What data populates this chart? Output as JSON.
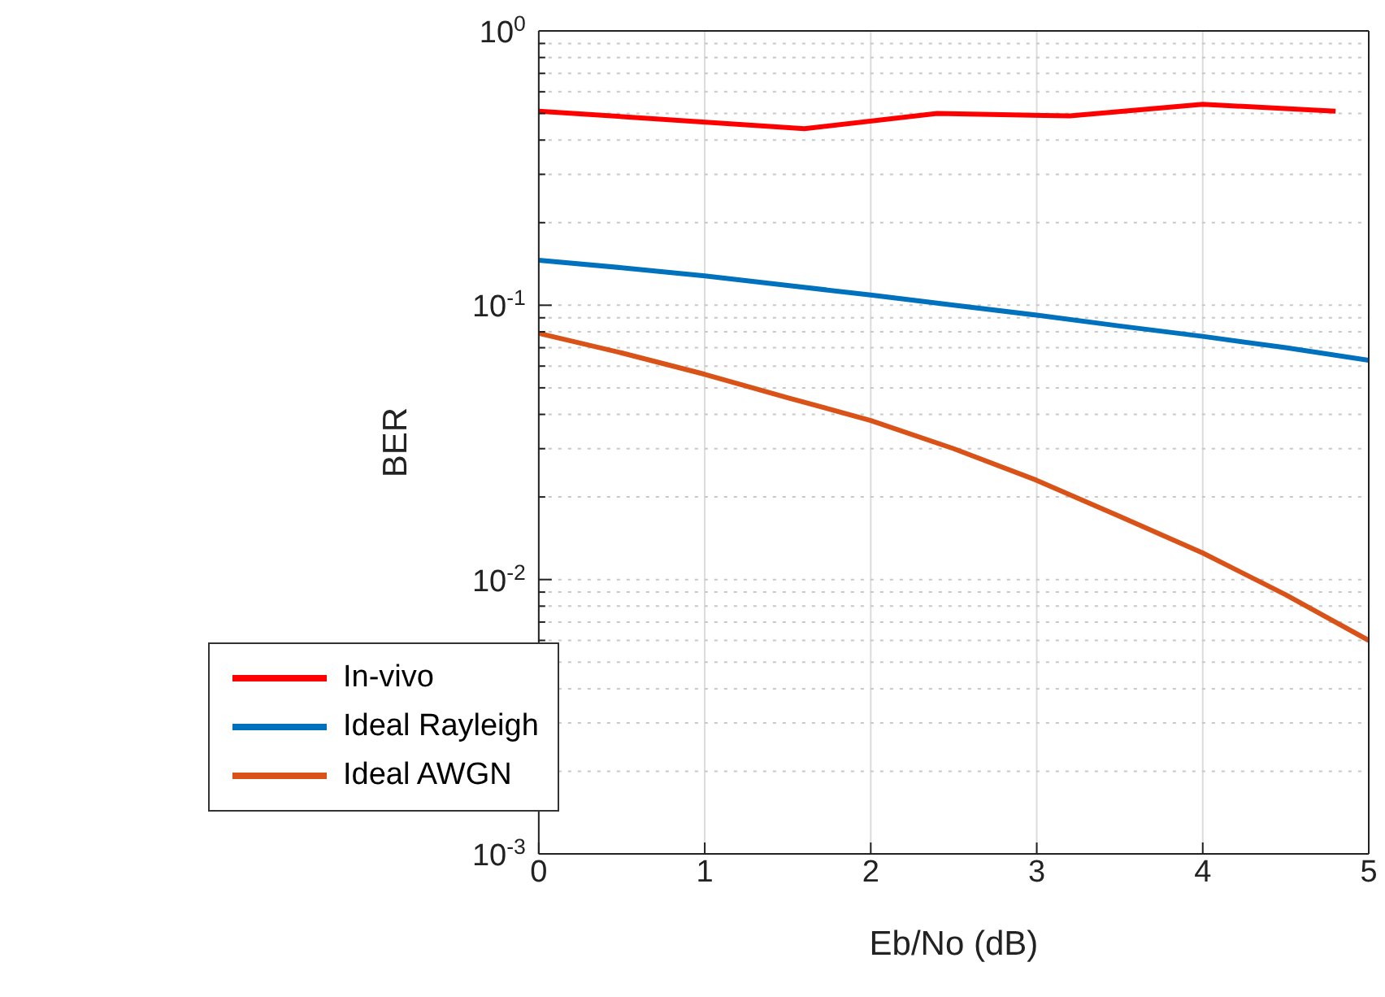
{
  "chart_data": {
    "type": "line",
    "xlabel": "Eb/No (dB)",
    "ylabel": "BER",
    "log": "y",
    "grid": true,
    "legend": "bottom left",
    "line_style": "solid",
    "marker": "none",
    "xlim": [
      0,
      5
    ],
    "xticks": [
      0,
      1,
      2,
      3,
      4,
      5
    ],
    "ylim": [
      0.001,
      1
    ],
    "yticks": [
      {
        "value": 0.001,
        "label": "10$^{-3}$"
      },
      {
        "value": 0.002,
        "label": null
      },
      {
        "value": 0.003,
        "label": null
      },
      {
        "value": 0.004,
        "label": null
      },
      {
        "value": 0.005,
        "label": null
      },
      {
        "value": 0.006,
        "label": null
      },
      {
        "value": 0.007,
        "label": null
      },
      {
        "value": 0.008,
        "label": null
      },
      {
        "value": 0.009,
        "label": null
      },
      {
        "value": 0.01,
        "label": "10$^{-2}$"
      },
      {
        "value": 0.02,
        "label": null
      },
      {
        "value": 0.03,
        "label": null
      },
      {
        "value": 0.04,
        "label": null
      },
      {
        "value": 0.05,
        "label": null
      },
      {
        "value": 0.06,
        "label": null
      },
      {
        "value": 0.07,
        "label": null
      },
      {
        "value": 0.08,
        "label": null
      },
      {
        "value": 0.09,
        "label": null
      },
      {
        "value": 0.1,
        "label": "10$^{-1}$"
      },
      {
        "value": 0.2,
        "label": null
      },
      {
        "value": 0.3,
        "label": null
      },
      {
        "value": 0.4,
        "label": null
      },
      {
        "value": 0.5,
        "label": null
      },
      {
        "value": 0.6,
        "label": null
      },
      {
        "value": 0.7,
        "label": null
      },
      {
        "value": 0.8,
        "label": null
      },
      {
        "value": 0.9,
        "label": null
      },
      {
        "value": 1,
        "label": "10$^{0}$"
      }
    ],
    "series": [
      {
        "name": "In-vivo",
        "color": "#ff0000",
        "x": [
          0,
          1.6,
          2.4,
          3.2,
          4,
          4.8
        ],
        "values": [
          0.51,
          0.44,
          0.5,
          0.49,
          0.54,
          0.51
        ]
      },
      {
        "name": "Ideal Rayleigh",
        "color": "#0072bd",
        "x": [
          0,
          0.5,
          1,
          1.5,
          2,
          2.5,
          3,
          3.5,
          4,
          4.5,
          5
        ],
        "values": [
          0.146,
          0.137,
          0.128,
          0.118,
          0.109,
          0.1,
          0.092,
          0.084,
          0.077,
          0.07,
          0.063
        ]
      },
      {
        "name": "Ideal AWGN",
        "color": "#d95319",
        "x": [
          0,
          0.5,
          1,
          1.5,
          2,
          2.5,
          3,
          3.5,
          4,
          4.5,
          5
        ],
        "values": [
          0.079,
          0.067,
          0.056,
          0.046,
          0.038,
          0.03,
          0.023,
          0.017,
          0.0125,
          0.0088,
          0.006
        ]
      }
    ]
  }
}
